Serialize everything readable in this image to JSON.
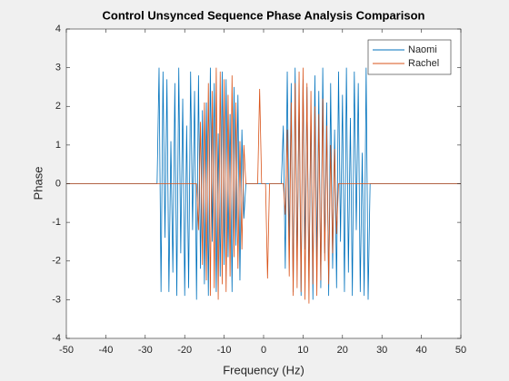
{
  "chart_data": {
    "type": "line",
    "title": "Control Unsynced Sequence Phase Analysis Comparison",
    "xlabel": "Frequency (Hz)",
    "ylabel": "Phase",
    "xlim": [
      -50,
      50
    ],
    "ylim": [
      -4,
      4
    ],
    "xticks": [
      -50,
      -40,
      -30,
      -20,
      -10,
      0,
      10,
      20,
      30,
      40,
      50
    ],
    "yticks": [
      -4,
      -3,
      -2,
      -1,
      0,
      1,
      2,
      3,
      4
    ],
    "legend": "northeast",
    "x": [
      -50,
      -27,
      -26.5,
      -26,
      -25.5,
      -25,
      -24.5,
      -24,
      -23.5,
      -23,
      -22.5,
      -22,
      -21.5,
      -21,
      -20.5,
      -20,
      -19.5,
      -19,
      -18.5,
      -18,
      -17.5,
      -17,
      -16.5,
      -16,
      -15.5,
      -15,
      -14.5,
      -14,
      -13.5,
      -13,
      -12.5,
      -12,
      -11.5,
      -11,
      -10.5,
      -10,
      -9.5,
      -9,
      -8.5,
      -8,
      -7.5,
      -7,
      -6.5,
      -6,
      -5.5,
      -5,
      -4.5,
      -4,
      -3.5,
      -3,
      -2.5,
      -2,
      -1.5,
      -1,
      -0.5,
      0,
      0.5,
      1,
      1.5,
      2,
      2.5,
      3,
      3.5,
      4,
      4.5,
      5,
      5.5,
      6,
      6.5,
      7,
      7.5,
      8,
      8.5,
      9,
      9.5,
      10,
      10.5,
      11,
      11.5,
      12,
      12.5,
      13,
      13.5,
      14,
      14.5,
      15,
      15.5,
      16,
      16.5,
      17,
      17.5,
      18,
      18.5,
      19,
      19.5,
      20,
      20.5,
      21,
      21.5,
      22,
      22.5,
      23,
      23.5,
      24,
      24.5,
      25,
      25.5,
      26,
      26.5,
      27,
      50
    ],
    "series": [
      {
        "name": "Naomi",
        "color": "#0072bd",
        "values": [
          0,
          0,
          3.0,
          -2.8,
          2.9,
          -1.4,
          2.7,
          -2.8,
          1.1,
          -2.3,
          2.6,
          -2.9,
          3.0,
          -1.8,
          2.2,
          -2.9,
          1.5,
          -2.7,
          2.9,
          -1.2,
          2.4,
          -3.0,
          2.8,
          -2.2,
          1.9,
          -2.6,
          2.1,
          -2.9,
          3.0,
          -1.5,
          2.6,
          -2.8,
          1.3,
          -2.4,
          2.9,
          -2.1,
          2.7,
          -1.9,
          1.8,
          -2.8,
          2.5,
          -1.6,
          2.3,
          -2.5,
          1.4,
          -0.9,
          0,
          0,
          0,
          0,
          0,
          0,
          0,
          0,
          0,
          0,
          0,
          0,
          0,
          0,
          0,
          0,
          0,
          0,
          0,
          1.5,
          -2.2,
          2.9,
          -1.6,
          2.6,
          -2.8,
          3.0,
          -2.1,
          2.2,
          -2.9,
          2.7,
          -1.7,
          2.5,
          -2.6,
          1.9,
          -3.0,
          2.8,
          -2.0,
          2.4,
          -2.7,
          3.0,
          -1.8,
          2.1,
          -2.9,
          2.6,
          -2.2,
          1.4,
          -2.7,
          2.9,
          -1.5,
          2.3,
          -2.8,
          3.0,
          -2.3,
          1.7,
          -2.9,
          2.9,
          -1.2,
          2.6,
          -2.8,
          0.8,
          -2.9,
          3.0,
          -3.0,
          0,
          0
        ]
      },
      {
        "name": "Rachel",
        "color": "#d95319",
        "values": [
          0,
          0,
          0,
          0,
          0,
          0,
          0,
          0,
          0,
          0,
          0,
          0,
          0,
          0,
          0,
          0,
          0,
          0,
          0,
          0,
          0,
          0,
          -1.2,
          1.6,
          -2.1,
          2.1,
          -2.5,
          2.6,
          -2.9,
          2.4,
          -2.7,
          3.0,
          -3.0,
          2.9,
          -2.6,
          2.7,
          -2.8,
          2.3,
          -2.4,
          2.8,
          -1.9,
          2.1,
          -2.2,
          1.1,
          -1.7,
          1.0,
          0,
          0,
          0,
          0,
          0,
          0,
          0,
          2.45,
          0,
          0,
          0,
          -2.45,
          0,
          0,
          0,
          0,
          0,
          0,
          0,
          0,
          -0.8,
          1.4,
          -2.4,
          2.1,
          -2.9,
          2.6,
          -2.7,
          2.9,
          -2.8,
          3.0,
          -3.0,
          2.6,
          -3.1,
          2.4,
          -2.6,
          2.0,
          -2.9,
          1.8,
          -2.5,
          2.2,
          -2.0,
          1.5,
          -2.6,
          1.0,
          -1.8,
          0.9,
          -1.3,
          0,
          0,
          0,
          0,
          0,
          0,
          0,
          0,
          0,
          0,
          0,
          0,
          0,
          0,
          0,
          0,
          0,
          0
        ]
      }
    ]
  }
}
